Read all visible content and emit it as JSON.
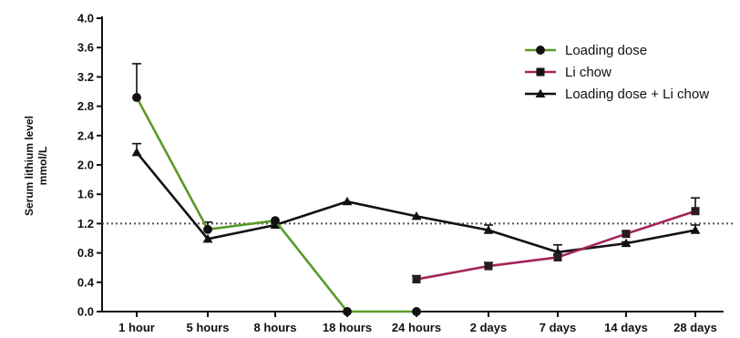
{
  "chart_data": {
    "type": "line",
    "ylabel_line1": "Serum lithium level",
    "ylabel_line2": "mmol/L",
    "ylim": [
      0,
      4.0
    ],
    "y_ticks": [
      "0.0",
      "0.4",
      "0.8",
      "1.2",
      "1.6",
      "2.0",
      "2.4",
      "2.8",
      "3.2",
      "3.6",
      "4.0"
    ],
    "categories": [
      "1 hour",
      "5 hours",
      "8 hours",
      "18 hours",
      "24 hours",
      "2 days",
      "7 days",
      "14 days",
      "28 days"
    ],
    "reference_line": 1.2,
    "legend_position": "top-right",
    "series": [
      {
        "name": "Loading dose",
        "color": "#5a9a26",
        "marker": "circle",
        "points": [
          {
            "x": "1 hour",
            "y": 2.92,
            "err": 0.46
          },
          {
            "x": "5 hours",
            "y": 1.12,
            "err": 0.1
          },
          {
            "x": "8 hours",
            "y": 1.24,
            "err": 0.0
          },
          {
            "x": "18 hours",
            "y": 0.0,
            "err": 0.0
          },
          {
            "x": "24 hours",
            "y": 0.0,
            "err": 0.0
          }
        ]
      },
      {
        "name": "Li chow",
        "color": "#a3255a",
        "marker": "square",
        "points": [
          {
            "x": "24 hours",
            "y": 0.44,
            "err": 0.05
          },
          {
            "x": "2 days",
            "y": 0.62,
            "err": 0.05
          },
          {
            "x": "7 days",
            "y": 0.74,
            "err": 0.04
          },
          {
            "x": "14 days",
            "y": 1.06,
            "err": 0.03
          },
          {
            "x": "28 days",
            "y": 1.37,
            "err": 0.18
          }
        ]
      },
      {
        "name": "Loading dose + Li chow",
        "color": "#111111",
        "marker": "triangle",
        "points": [
          {
            "x": "1 hour",
            "y": 2.17,
            "err": 0.12
          },
          {
            "x": "5 hours",
            "y": 0.99,
            "err": 0.0
          },
          {
            "x": "8 hours",
            "y": 1.18,
            "err": 0.0
          },
          {
            "x": "18 hours",
            "y": 1.5,
            "err": 0.0
          },
          {
            "x": "24 hours",
            "y": 1.3,
            "err": 0.0
          },
          {
            "x": "2 days",
            "y": 1.11,
            "err": 0.07
          },
          {
            "x": "7 days",
            "y": 0.81,
            "err": 0.1
          },
          {
            "x": "14 days",
            "y": 0.93,
            "err": 0.02
          },
          {
            "x": "28 days",
            "y": 1.11,
            "err": 0.07
          }
        ]
      }
    ]
  }
}
